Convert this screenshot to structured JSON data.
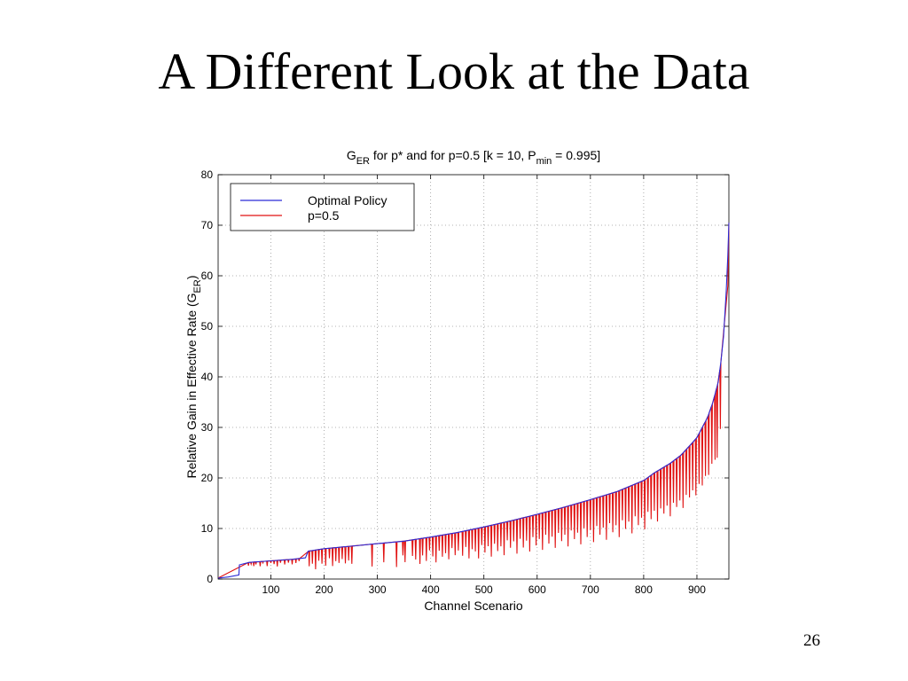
{
  "slide": {
    "title": "A Different Look at the Data",
    "page_number": "26"
  },
  "chart_data": {
    "type": "line",
    "title_main": "G",
    "title_main_sub": "ER",
    "title_mid": " for p* and for p=0.5   [k = 10, P",
    "title_mid_sub": "min",
    "title_end": " = 0.995]",
    "xlabel": "Channel Scenario",
    "ylabel_main": "Relative Gain in Effective Rate (G",
    "ylabel_sub": "ER",
    "ylabel_end": ")",
    "xlim": [
      1,
      960
    ],
    "ylim": [
      0,
      80
    ],
    "x_ticks": [
      100,
      200,
      300,
      400,
      500,
      600,
      700,
      800,
      900
    ],
    "y_ticks": [
      0,
      10,
      20,
      30,
      40,
      50,
      60,
      70,
      80
    ],
    "grid": true,
    "legend_position": "top-left",
    "colors": {
      "optimal": "#2b2bd6",
      "p05": "#e01010"
    },
    "series": [
      {
        "name": "Optimal Policy",
        "x": [
          1,
          20,
          40,
          41,
          60,
          100,
          140,
          165,
          168,
          170,
          200,
          250,
          300,
          350,
          400,
          450,
          500,
          550,
          600,
          650,
          700,
          750,
          800,
          820,
          850,
          870,
          890,
          900,
          910,
          920,
          930,
          940,
          945,
          950,
          955,
          958,
          960
        ],
        "y": [
          0.2,
          0.4,
          0.8,
          2.8,
          3.3,
          3.6,
          3.9,
          4.2,
          5.0,
          5.5,
          6.0,
          6.5,
          7.0,
          7.5,
          8.3,
          9.2,
          10.3,
          11.5,
          12.8,
          14.2,
          15.7,
          17.3,
          19.5,
          21.0,
          22.9,
          24.5,
          26.8,
          28.0,
          30.0,
          32.0,
          35.0,
          39.0,
          43.0,
          48.0,
          57.0,
          64.0,
          70.5
        ]
      },
      {
        "name": "p=0.5",
        "dips": [
          [
            58,
            0.6
          ],
          [
            63,
            0.4
          ],
          [
            68,
            0.8
          ],
          [
            72,
            0.5
          ],
          [
            80,
            0.9
          ],
          [
            85,
            0.3
          ],
          [
            93,
            1.0
          ],
          [
            100,
            0.4
          ],
          [
            106,
            0.7
          ],
          [
            112,
            1.2
          ],
          [
            118,
            0.5
          ],
          [
            126,
            0.9
          ],
          [
            133,
            0.6
          ],
          [
            140,
            1.0
          ],
          [
            147,
            0.8
          ],
          [
            153,
            0.5
          ],
          [
            172,
            3.0
          ],
          [
            178,
            2.6
          ],
          [
            184,
            3.8
          ],
          [
            190,
            2.2
          ],
          [
            196,
            2.9
          ],
          [
            203,
            3.4
          ],
          [
            210,
            2.0
          ],
          [
            216,
            3.6
          ],
          [
            222,
            2.7
          ],
          [
            228,
            3.1
          ],
          [
            234,
            2.4
          ],
          [
            240,
            3.3
          ],
          [
            246,
            2.8
          ],
          [
            252,
            3.5
          ],
          [
            290,
            4.4
          ],
          [
            312,
            3.8
          ],
          [
            336,
            5.0
          ],
          [
            348,
            2.8
          ],
          [
            352,
            4.2
          ],
          [
            366,
            3.2
          ],
          [
            372,
            4.0
          ],
          [
            380,
            5.0
          ],
          [
            385,
            3.4
          ],
          [
            392,
            4.6
          ],
          [
            398,
            2.6
          ],
          [
            404,
            3.9
          ],
          [
            410,
            5.2
          ],
          [
            416,
            3.0
          ],
          [
            422,
            4.3
          ],
          [
            428,
            3.7
          ],
          [
            434,
            5.0
          ],
          [
            440,
            2.9
          ],
          [
            446,
            4.4
          ],
          [
            452,
            3.6
          ],
          [
            460,
            4.8
          ],
          [
            466,
            3.2
          ],
          [
            472,
            5.6
          ],
          [
            478,
            3.9
          ],
          [
            484,
            4.5
          ],
          [
            490,
            6.0
          ],
          [
            496,
            3.5
          ],
          [
            502,
            5.1
          ],
          [
            508,
            4.0
          ],
          [
            514,
            6.2
          ],
          [
            520,
            3.8
          ],
          [
            526,
            5.4
          ],
          [
            532,
            4.6
          ],
          [
            538,
            6.5
          ],
          [
            544,
            3.7
          ],
          [
            550,
            5.3
          ],
          [
            556,
            4.2
          ],
          [
            562,
            6.8
          ],
          [
            568,
            4.0
          ],
          [
            574,
            5.9
          ],
          [
            580,
            4.7
          ],
          [
            586,
            7.0
          ],
          [
            592,
            4.3
          ],
          [
            598,
            6.1
          ],
          [
            604,
            5.0
          ],
          [
            610,
            7.3
          ],
          [
            616,
            4.5
          ],
          [
            622,
            6.4
          ],
          [
            628,
            5.2
          ],
          [
            634,
            7.6
          ],
          [
            640,
            4.8
          ],
          [
            646,
            6.6
          ],
          [
            652,
            5.5
          ],
          [
            658,
            8.0
          ],
          [
            664,
            5.0
          ],
          [
            670,
            6.9
          ],
          [
            676,
            5.8
          ],
          [
            682,
            8.3
          ],
          [
            688,
            5.3
          ],
          [
            694,
            7.2
          ],
          [
            700,
            6.0
          ],
          [
            706,
            8.6
          ],
          [
            712,
            5.6
          ],
          [
            718,
            7.5
          ],
          [
            724,
            6.3
          ],
          [
            730,
            8.9
          ],
          [
            736,
            5.8
          ],
          [
            742,
            7.8
          ],
          [
            748,
            6.6
          ],
          [
            754,
            9.2
          ],
          [
            760,
            6.1
          ],
          [
            766,
            8.1
          ],
          [
            772,
            6.9
          ],
          [
            778,
            9.5
          ],
          [
            784,
            6.4
          ],
          [
            790,
            8.4
          ],
          [
            796,
            7.2
          ],
          [
            802,
            9.8
          ],
          [
            808,
            6.8
          ],
          [
            814,
            8.7
          ],
          [
            820,
            7.5
          ],
          [
            826,
            10.0
          ],
          [
            832,
            7.8
          ],
          [
            838,
            9.2
          ],
          [
            844,
            8.0
          ],
          [
            850,
            10.5
          ],
          [
            856,
            8.3
          ],
          [
            862,
            9.6
          ],
          [
            868,
            8.8
          ],
          [
            874,
            10.9
          ],
          [
            880,
            9.0
          ],
          [
            886,
            10.2
          ],
          [
            892,
            9.5
          ],
          [
            898,
            11.2
          ],
          [
            904,
            10.0
          ],
          [
            910,
            11.5
          ],
          [
            916,
            10.8
          ],
          [
            922,
            12.0
          ],
          [
            928,
            11.6
          ],
          [
            934,
            13.0
          ],
          [
            938,
            14.2
          ],
          [
            944,
            12.5
          ]
        ]
      }
    ]
  }
}
